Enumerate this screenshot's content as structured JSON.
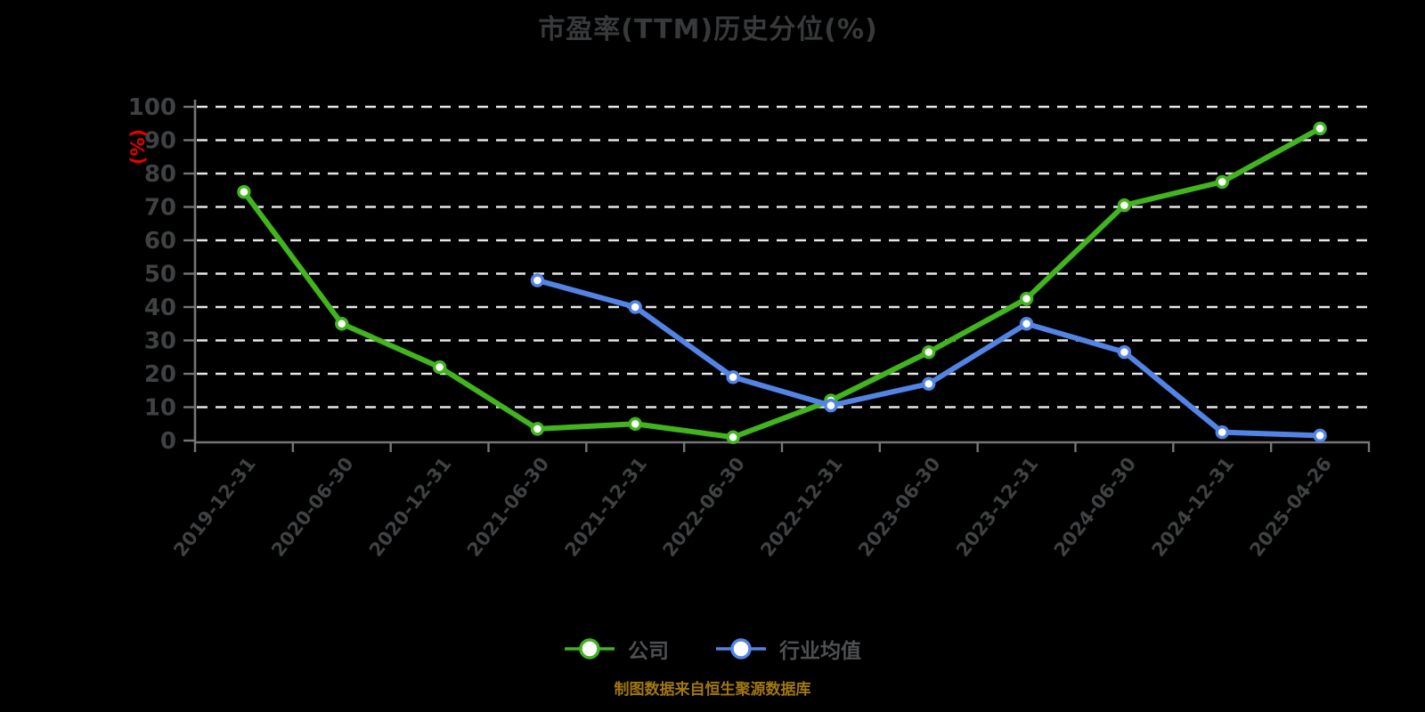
{
  "footer": {
    "text": "制图数据来自恒生聚源数据库"
  },
  "colors": {
    "background": "#000000",
    "title": "#37393b",
    "axis": "#757575",
    "grid": "#e6e6e6",
    "tick_label": "#3f4143",
    "unit_label": "#e60000",
    "legend_label": "#4d4f52",
    "footer": "#a1770f",
    "company": "#41b41e",
    "industry": "#5284e6",
    "marker_fill": "#ffffff"
  },
  "chart_data": {
    "type": "line",
    "title": "市盈率(TTM)历史分位(%)",
    "xlabel": "",
    "ylabel": "(%)",
    "ylim": [
      0,
      100
    ],
    "ytick_step": 10,
    "grid": true,
    "grid_style": "dashed",
    "legend_position": "bottom",
    "categories": [
      "2019-12-31",
      "2020-06-30",
      "2020-12-31",
      "2021-06-30",
      "2021-12-31",
      "2022-06-30",
      "2022-12-31",
      "2023-06-30",
      "2023-12-31",
      "2024-06-30",
      "2024-12-31",
      "2025-04-26"
    ],
    "series": [
      {
        "name": "公司",
        "color": "#41b41e",
        "values": [
          74.5,
          35,
          22,
          3.5,
          5,
          1,
          12,
          26.5,
          42.5,
          70.5,
          77.5,
          93.5
        ]
      },
      {
        "name": "行业均值",
        "color": "#5284e6",
        "values": [
          null,
          null,
          null,
          48,
          40,
          19,
          10.5,
          17,
          35,
          26.5,
          2.5,
          1.5
        ]
      }
    ]
  }
}
